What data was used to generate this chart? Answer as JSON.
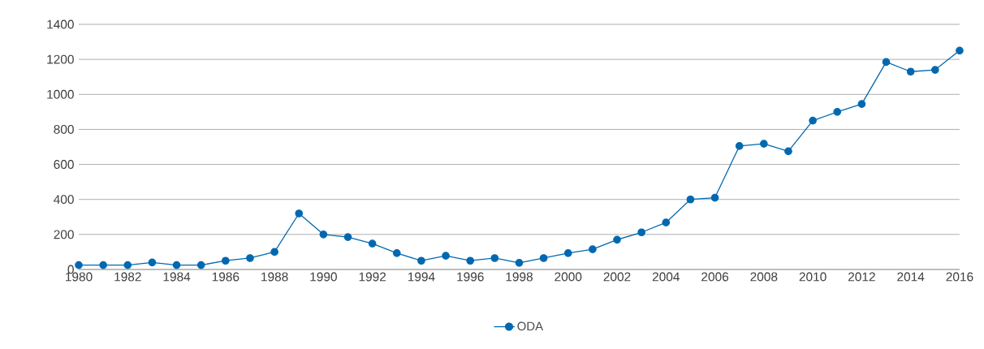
{
  "chart_data": {
    "type": "line",
    "x": [
      1980,
      1981,
      1982,
      1983,
      1984,
      1985,
      1986,
      1987,
      1988,
      1989,
      1990,
      1991,
      1992,
      1993,
      1994,
      1995,
      1996,
      1997,
      1998,
      1999,
      2000,
      2001,
      2002,
      2003,
      2004,
      2005,
      2006,
      2007,
      2008,
      2009,
      2010,
      2011,
      2012,
      2013,
      2014,
      2015,
      2016
    ],
    "series": [
      {
        "name": "ODA",
        "color": "#0068b0",
        "values": [
          25,
          25,
          25,
          40,
          25,
          25,
          50,
          65,
          100,
          320,
          200,
          185,
          148,
          93,
          50,
          78,
          50,
          65,
          38,
          65,
          93,
          115,
          170,
          212,
          268,
          400,
          410,
          705,
          718,
          675,
          850,
          900,
          945,
          1185,
          1130,
          1140,
          1250
        ]
      }
    ],
    "xlim": [
      1980,
      2016
    ],
    "ylim": [
      0,
      1400
    ],
    "xticks": [
      1980,
      1982,
      1984,
      1986,
      1988,
      1990,
      1992,
      1994,
      1996,
      1998,
      2000,
      2002,
      2004,
      2006,
      2008,
      2010,
      2012,
      2014,
      2016
    ],
    "yticks": [
      0,
      200,
      400,
      600,
      800,
      1000,
      1200,
      1400
    ],
    "grid": "y",
    "legend": "bottom",
    "marker": "circle",
    "line_style": "solid"
  }
}
